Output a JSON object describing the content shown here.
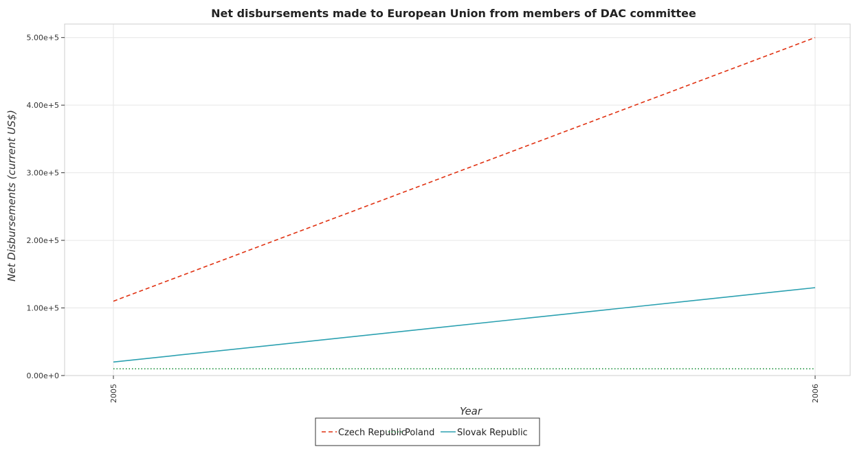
{
  "chart_data": {
    "type": "line",
    "title": "Net disbursements made to European Union from members of DAC committee",
    "xlabel": "Year",
    "ylabel": "Net Disbursements (current US$)",
    "categories": [
      "2005",
      "2006"
    ],
    "ylim": [
      0,
      520000
    ],
    "yticks": [
      0,
      100000,
      200000,
      300000,
      400000,
      500000
    ],
    "ytick_labels": [
      "0.00e+0",
      "1.00e+5",
      "2.00e+5",
      "3.00e+5",
      "4.00e+5",
      "5.00e+5"
    ],
    "grid": true,
    "legend_position": "bottom-center",
    "series": [
      {
        "name": "Czech Republic",
        "values": [
          110000,
          500000
        ],
        "color": "#e03010",
        "dash": "dash"
      },
      {
        "name": "Poland",
        "values": [
          10000,
          10000
        ],
        "color": "#1a8f3a",
        "dash": "dot"
      },
      {
        "name": "Slovak Republic",
        "values": [
          20000,
          130000
        ],
        "color": "#2aa0b0",
        "dash": "solid"
      }
    ]
  }
}
